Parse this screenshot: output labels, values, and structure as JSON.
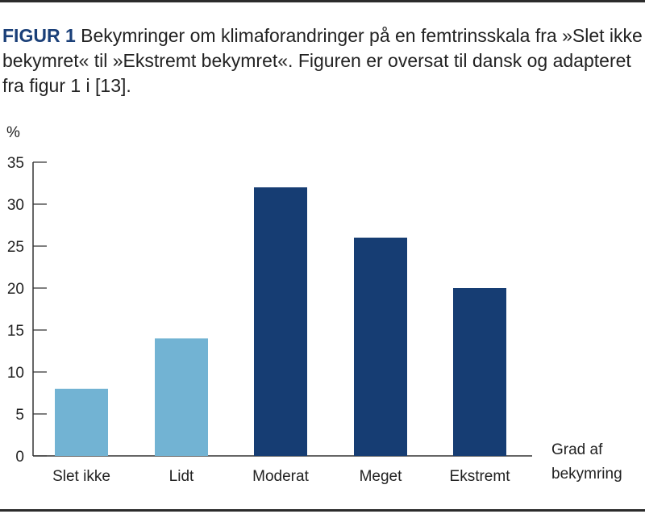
{
  "caption": {
    "label": "FIGUR 1",
    "text": " Bekymringer om klimaforandringer på en femtrinsskala fra »Slet ikke bekymret« til »Ekstremt bekymret«. Figuren er oversat til dansk og adapteret fra figur 1 i [13]."
  },
  "chart_data": {
    "type": "bar",
    "title": "Bekymringer om klimaforandringer på en femtrinsskala",
    "ylabel": "%",
    "xlabel": [
      "Grad af",
      "bekymring"
    ],
    "categories": [
      "Slet ikke",
      "Lidt",
      "Moderat",
      "Meget",
      "Ekstremt"
    ],
    "values": [
      8,
      14,
      32,
      26,
      20
    ],
    "ylim": [
      0,
      35
    ],
    "yticks": [
      0,
      5,
      10,
      15,
      20,
      25,
      30,
      35
    ],
    "grid": false,
    "colors": [
      "#72b3d3",
      "#72b3d3",
      "#163d73",
      "#163d73",
      "#163d73"
    ]
  }
}
